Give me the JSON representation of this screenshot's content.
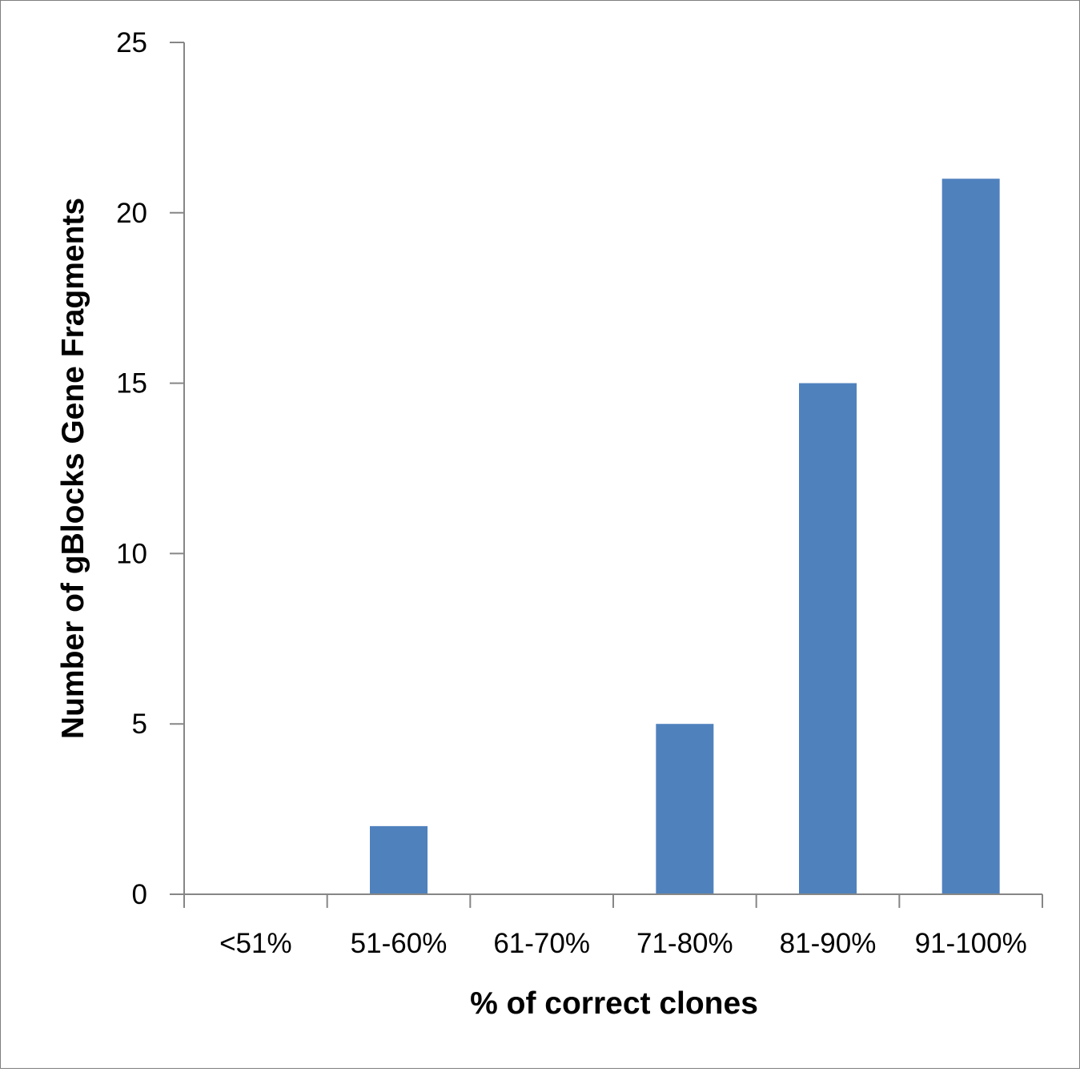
{
  "chart_data": {
    "type": "bar",
    "title": "",
    "xlabel": "% of correct clones",
    "ylabel": "Number of gBlocks Gene Fragments",
    "categories": [
      "<51%",
      "51-60%",
      "61-70%",
      "71-80%",
      "81-90%",
      "91-100%"
    ],
    "values": [
      0,
      2,
      0,
      5,
      15,
      21
    ],
    "ylim": [
      0,
      25
    ],
    "yticks": [
      0,
      5,
      10,
      15,
      20,
      25
    ],
    "grid": false,
    "legend": "none",
    "bar_color": "#4f81bd",
    "axis_color": "#868686"
  }
}
